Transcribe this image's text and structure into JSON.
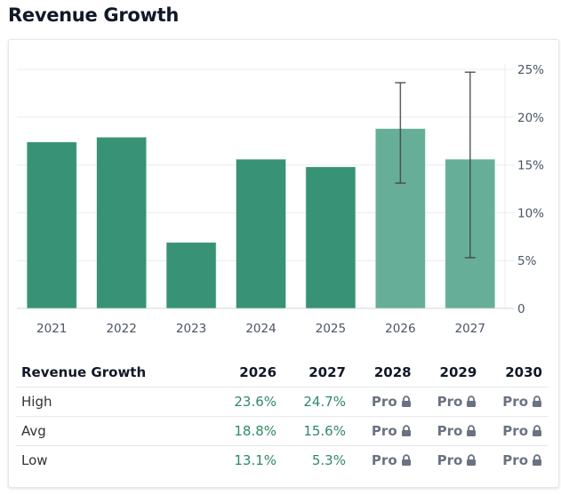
{
  "page": {
    "title": "Revenue Growth"
  },
  "colors": {
    "actual": "#389275",
    "estimate": "#67ae98",
    "errorbar": "#3f4443",
    "grid": "#ececec",
    "value_text": "#2f8a64",
    "pro_text": "#6b7280"
  },
  "chart_data": {
    "type": "bar",
    "title": "Revenue Growth",
    "xlabel": "",
    "ylabel": "",
    "categories": [
      "2021",
      "2022",
      "2023",
      "2024",
      "2025",
      "2026",
      "2027"
    ],
    "values": [
      17.4,
      17.9,
      6.9,
      15.6,
      14.8,
      18.8,
      15.6
    ],
    "estimate": [
      false,
      false,
      false,
      false,
      false,
      true,
      true
    ],
    "error_high": [
      null,
      null,
      null,
      null,
      null,
      23.6,
      24.7
    ],
    "error_low": [
      null,
      null,
      null,
      null,
      null,
      13.1,
      5.3
    ],
    "ylim": [
      0,
      25
    ],
    "yticks": [
      0,
      5,
      10,
      15,
      20,
      25
    ],
    "ytick_labels": [
      "0",
      "5%",
      "10%",
      "15%",
      "20%",
      "25%"
    ],
    "y_axis_side": "right",
    "grid": true,
    "unit": "%"
  },
  "table": {
    "header": [
      "Revenue Growth",
      "2026",
      "2027",
      "2028",
      "2029",
      "2030"
    ],
    "rows": [
      {
        "label": "High",
        "values": [
          "23.6%",
          "24.7%"
        ],
        "locked": [
          "Pro",
          "Pro",
          "Pro"
        ]
      },
      {
        "label": "Avg",
        "values": [
          "18.8%",
          "15.6%"
        ],
        "locked": [
          "Pro",
          "Pro",
          "Pro"
        ]
      },
      {
        "label": "Low",
        "values": [
          "13.1%",
          "5.3%"
        ],
        "locked": [
          "Pro",
          "Pro",
          "Pro"
        ]
      }
    ],
    "lock_icon": "lock-icon"
  }
}
